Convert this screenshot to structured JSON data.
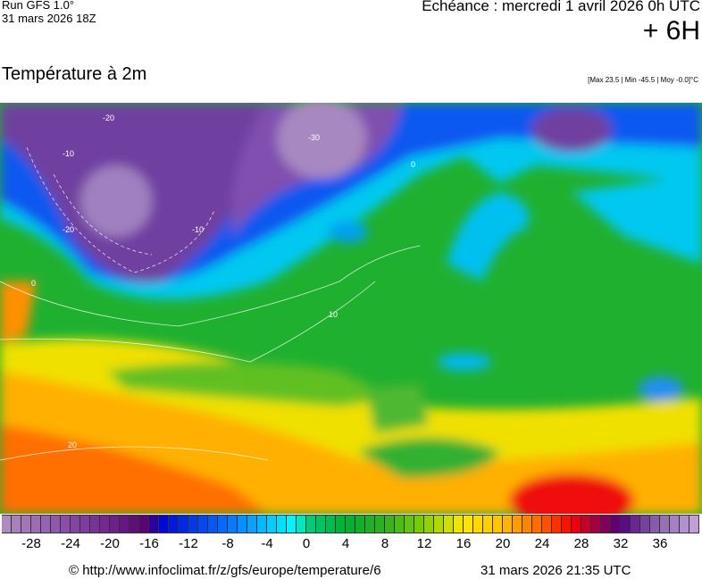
{
  "header": {
    "run": "Run GFS 1.0°",
    "run_date": "31 mars 2026 18Z",
    "echeance": "Echéance : mercredi 1 avril 2026 0h UTC",
    "offset": "+ 6H",
    "title": "Température à 2m",
    "stats": "[Max 23.5 | Min -45.5 | Moy -0.0]°C"
  },
  "map": {
    "contour_labels": [
      "-20",
      "-10",
      "0",
      "-30",
      "-20",
      "-10",
      "0",
      "10",
      "20"
    ]
  },
  "colorbar": {
    "min": -31,
    "max": 40,
    "unit": "°C",
    "stops": [
      [
        -31,
        "#b090c0"
      ],
      [
        -24,
        "#8848a8"
      ],
      [
        -16,
        "#580070"
      ],
      [
        -15,
        "#0000d0"
      ],
      [
        -8,
        "#0870ff"
      ],
      [
        -1,
        "#00ffff"
      ],
      [
        0,
        "#00d080"
      ],
      [
        4,
        "#00b030"
      ],
      [
        8,
        "#30b020"
      ],
      [
        12,
        "#80d000"
      ],
      [
        16,
        "#ffe800"
      ],
      [
        20,
        "#ffc000"
      ],
      [
        24,
        "#ff6000"
      ],
      [
        27,
        "#ff0000"
      ],
      [
        30,
        "#900050"
      ],
      [
        32,
        "#500080"
      ],
      [
        36,
        "#9068b0"
      ],
      [
        40,
        "#c8a8e0"
      ]
    ],
    "ticks": [
      "-28",
      "-24",
      "-20",
      "-16",
      "-12",
      "-8",
      "-4",
      "0",
      "4",
      "8",
      "12",
      "16",
      "20",
      "24",
      "28",
      "32",
      "36"
    ]
  },
  "footer": {
    "url": "© http://www.infoclimat.fr/z/gfs/europe/temperature/6",
    "generated": "31 mars 2026 21:35 UTC"
  }
}
